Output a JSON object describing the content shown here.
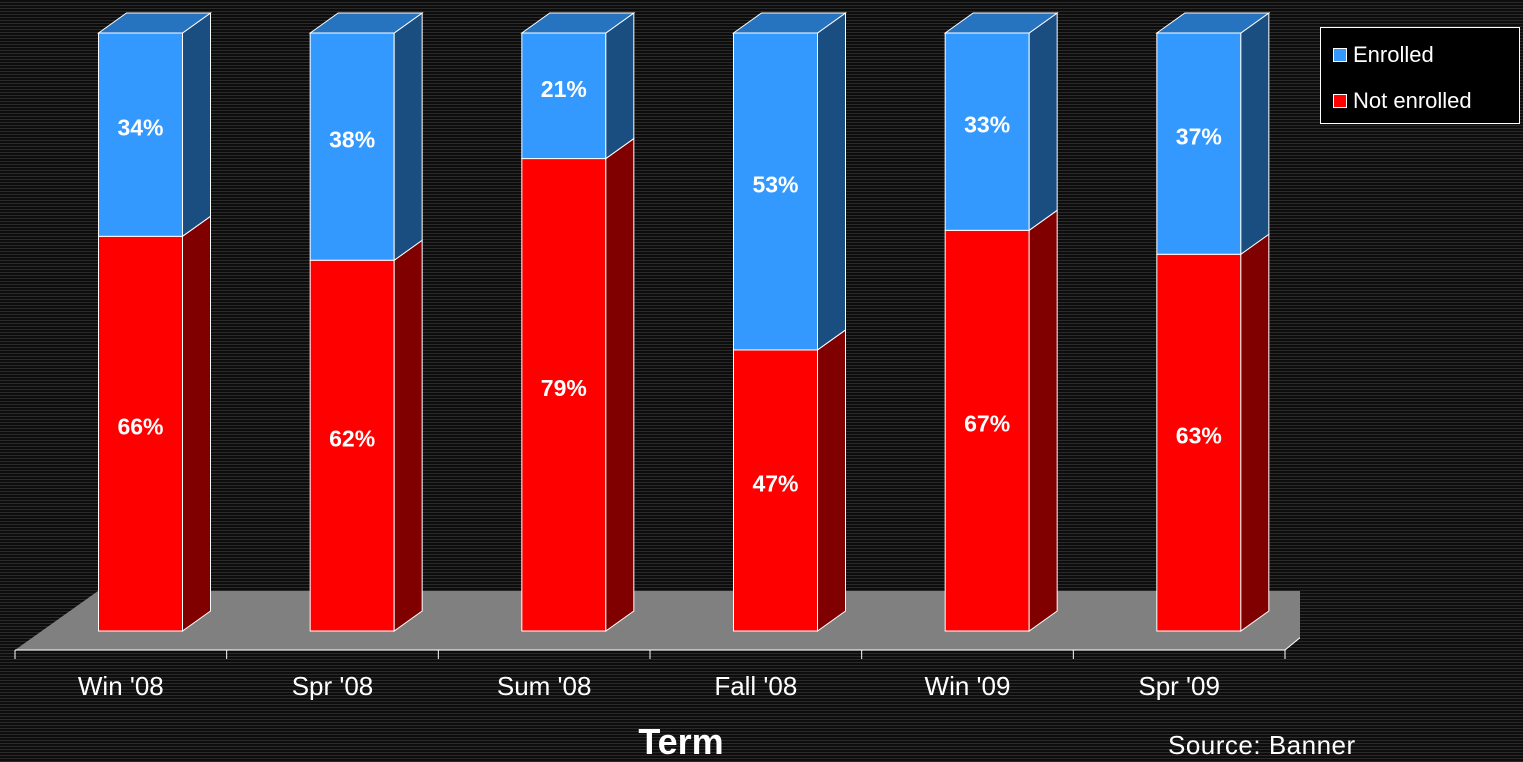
{
  "chart_data": {
    "type": "bar",
    "stacked": true,
    "percent": true,
    "three_d": true,
    "categories": [
      "Win '08",
      "Spr '08",
      "Sum '08",
      "Fall '08",
      "Win '09",
      "Spr '09"
    ],
    "series": [
      {
        "name": "Not enrolled",
        "color": "#ff0000",
        "values": [
          66,
          62,
          79,
          47,
          67,
          63
        ],
        "labels": [
          "66%",
          "62%",
          "79%",
          "47%",
          "67%",
          "63%"
        ]
      },
      {
        "name": "Enrolled",
        "color": "#3399ff",
        "values": [
          34,
          38,
          21,
          53,
          33,
          37
        ],
        "labels": [
          "34%",
          "38%",
          "21%",
          "53%",
          "33%",
          "37%"
        ]
      }
    ],
    "xlabel": "Term",
    "ylim": [
      0,
      100
    ],
    "legend_position": "top-right",
    "floor_color": "#808080"
  },
  "legend": {
    "items": [
      {
        "label": "Enrolled",
        "color": "#3399ff"
      },
      {
        "label": "Not enrolled",
        "color": "#ff0000"
      }
    ]
  },
  "source_note": "Source:  Banner"
}
